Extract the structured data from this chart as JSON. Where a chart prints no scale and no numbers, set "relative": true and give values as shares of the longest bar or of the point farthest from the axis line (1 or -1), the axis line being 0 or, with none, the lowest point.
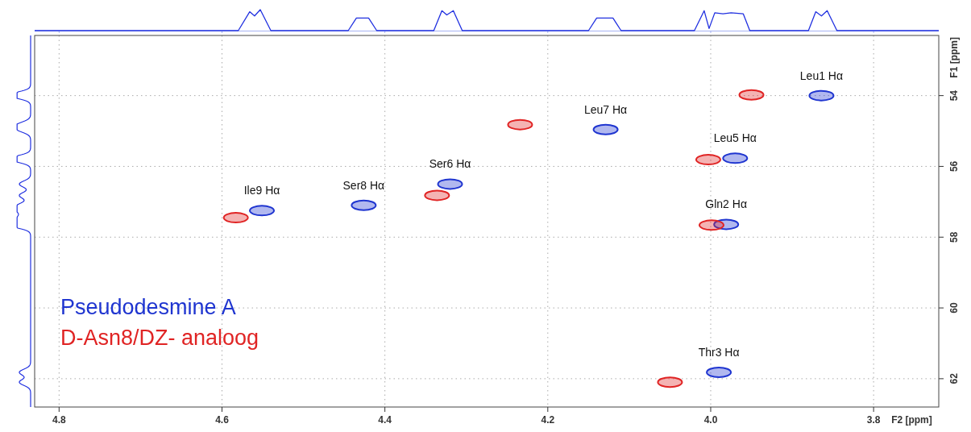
{
  "chart_data": [
    {
      "type": "line",
      "relative": true,
      "xlim": [
        4.83,
        3.72
      ],
      "xticks": [
        4.8,
        4.6,
        4.4,
        4.2,
        4,
        3.8
      ],
      "tick_labels": false,
      "series": [
        {
          "color": "#2030e0",
          "x": [
            4.83,
            4.58,
            4.566,
            4.56,
            4.553,
            4.54,
            4.445,
            4.435,
            4.42,
            4.41,
            4.34,
            4.33,
            4.324,
            4.316,
            4.305,
            4.15,
            4.14,
            4.12,
            4.11,
            4.02,
            4.008,
            4.002,
            3.995,
            3.985,
            3.975,
            3.96,
            3.952,
            3.88,
            3.871,
            3.864,
            3.857,
            3.845,
            3.72
          ],
          "values": [
            0,
            0,
            0.9,
            0.7,
            1,
            0,
            0,
            0.6,
            0.6,
            0,
            0,
            0.95,
            0.75,
            0.95,
            0,
            0,
            0.6,
            0.6,
            0,
            0,
            0.95,
            0.1,
            0.85,
            0.8,
            0.85,
            0.8,
            0,
            0,
            0.9,
            0.7,
            0.95,
            0,
            0
          ]
        }
      ]
    },
    {
      "type": "scatter",
      "xlabel": "F2 [ppm]",
      "ylabel": "F1 [ppm]",
      "xlim": [
        4.83,
        3.72
      ],
      "ylim": [
        62.8,
        52.3
      ],
      "xticks": [
        4.8,
        4.6,
        4.4,
        4.2,
        {
          "value": 4,
          "label": "4.0"
        },
        3.8
      ],
      "yticks": [
        54,
        56,
        58,
        60,
        62
      ],
      "grid": true,
      "legend": "bottom left",
      "marker": "circle",
      "series": [
        {
          "name": "Pseudodesmine A",
          "color": "#1f35d0",
          "x": [
            3.864,
            3.981,
            3.99,
            3.97,
            4.32,
            4.129,
            4.426,
            4.551
          ],
          "values": [
            54.0,
            57.64,
            61.82,
            55.77,
            56.5,
            54.96,
            57.1,
            57.25
          ]
        },
        {
          "name": "D-Asn8/DZ- analoog",
          "color": "#e02424",
          "x": [
            3.95,
            3.999,
            4.05,
            4.003,
            4.336,
            4.234,
            4.583
          ],
          "values": [
            53.98,
            57.66,
            62.1,
            55.81,
            56.82,
            54.82,
            57.45
          ]
        }
      ],
      "annotations": [
        {
          "text": "Leu1 Hα",
          "x": 3.864,
          "y": 54.0
        },
        {
          "text": "Gln2 Hα",
          "x": 3.981,
          "y": 57.64
        },
        {
          "text": "Thr3 Hα",
          "x": 3.99,
          "y": 61.82
        },
        {
          "text": "Leu5 Hα",
          "x": 3.97,
          "y": 55.77
        },
        {
          "text": "Ser6 Hα",
          "x": 4.32,
          "y": 56.5
        },
        {
          "text": "Leu7 Hα",
          "x": 4.129,
          "y": 54.96
        },
        {
          "text": "Ser8 Hα",
          "x": 4.426,
          "y": 57.1
        },
        {
          "text": "Ile9 Hα",
          "x": 4.551,
          "y": 57.25
        }
      ]
    }
  ]
}
